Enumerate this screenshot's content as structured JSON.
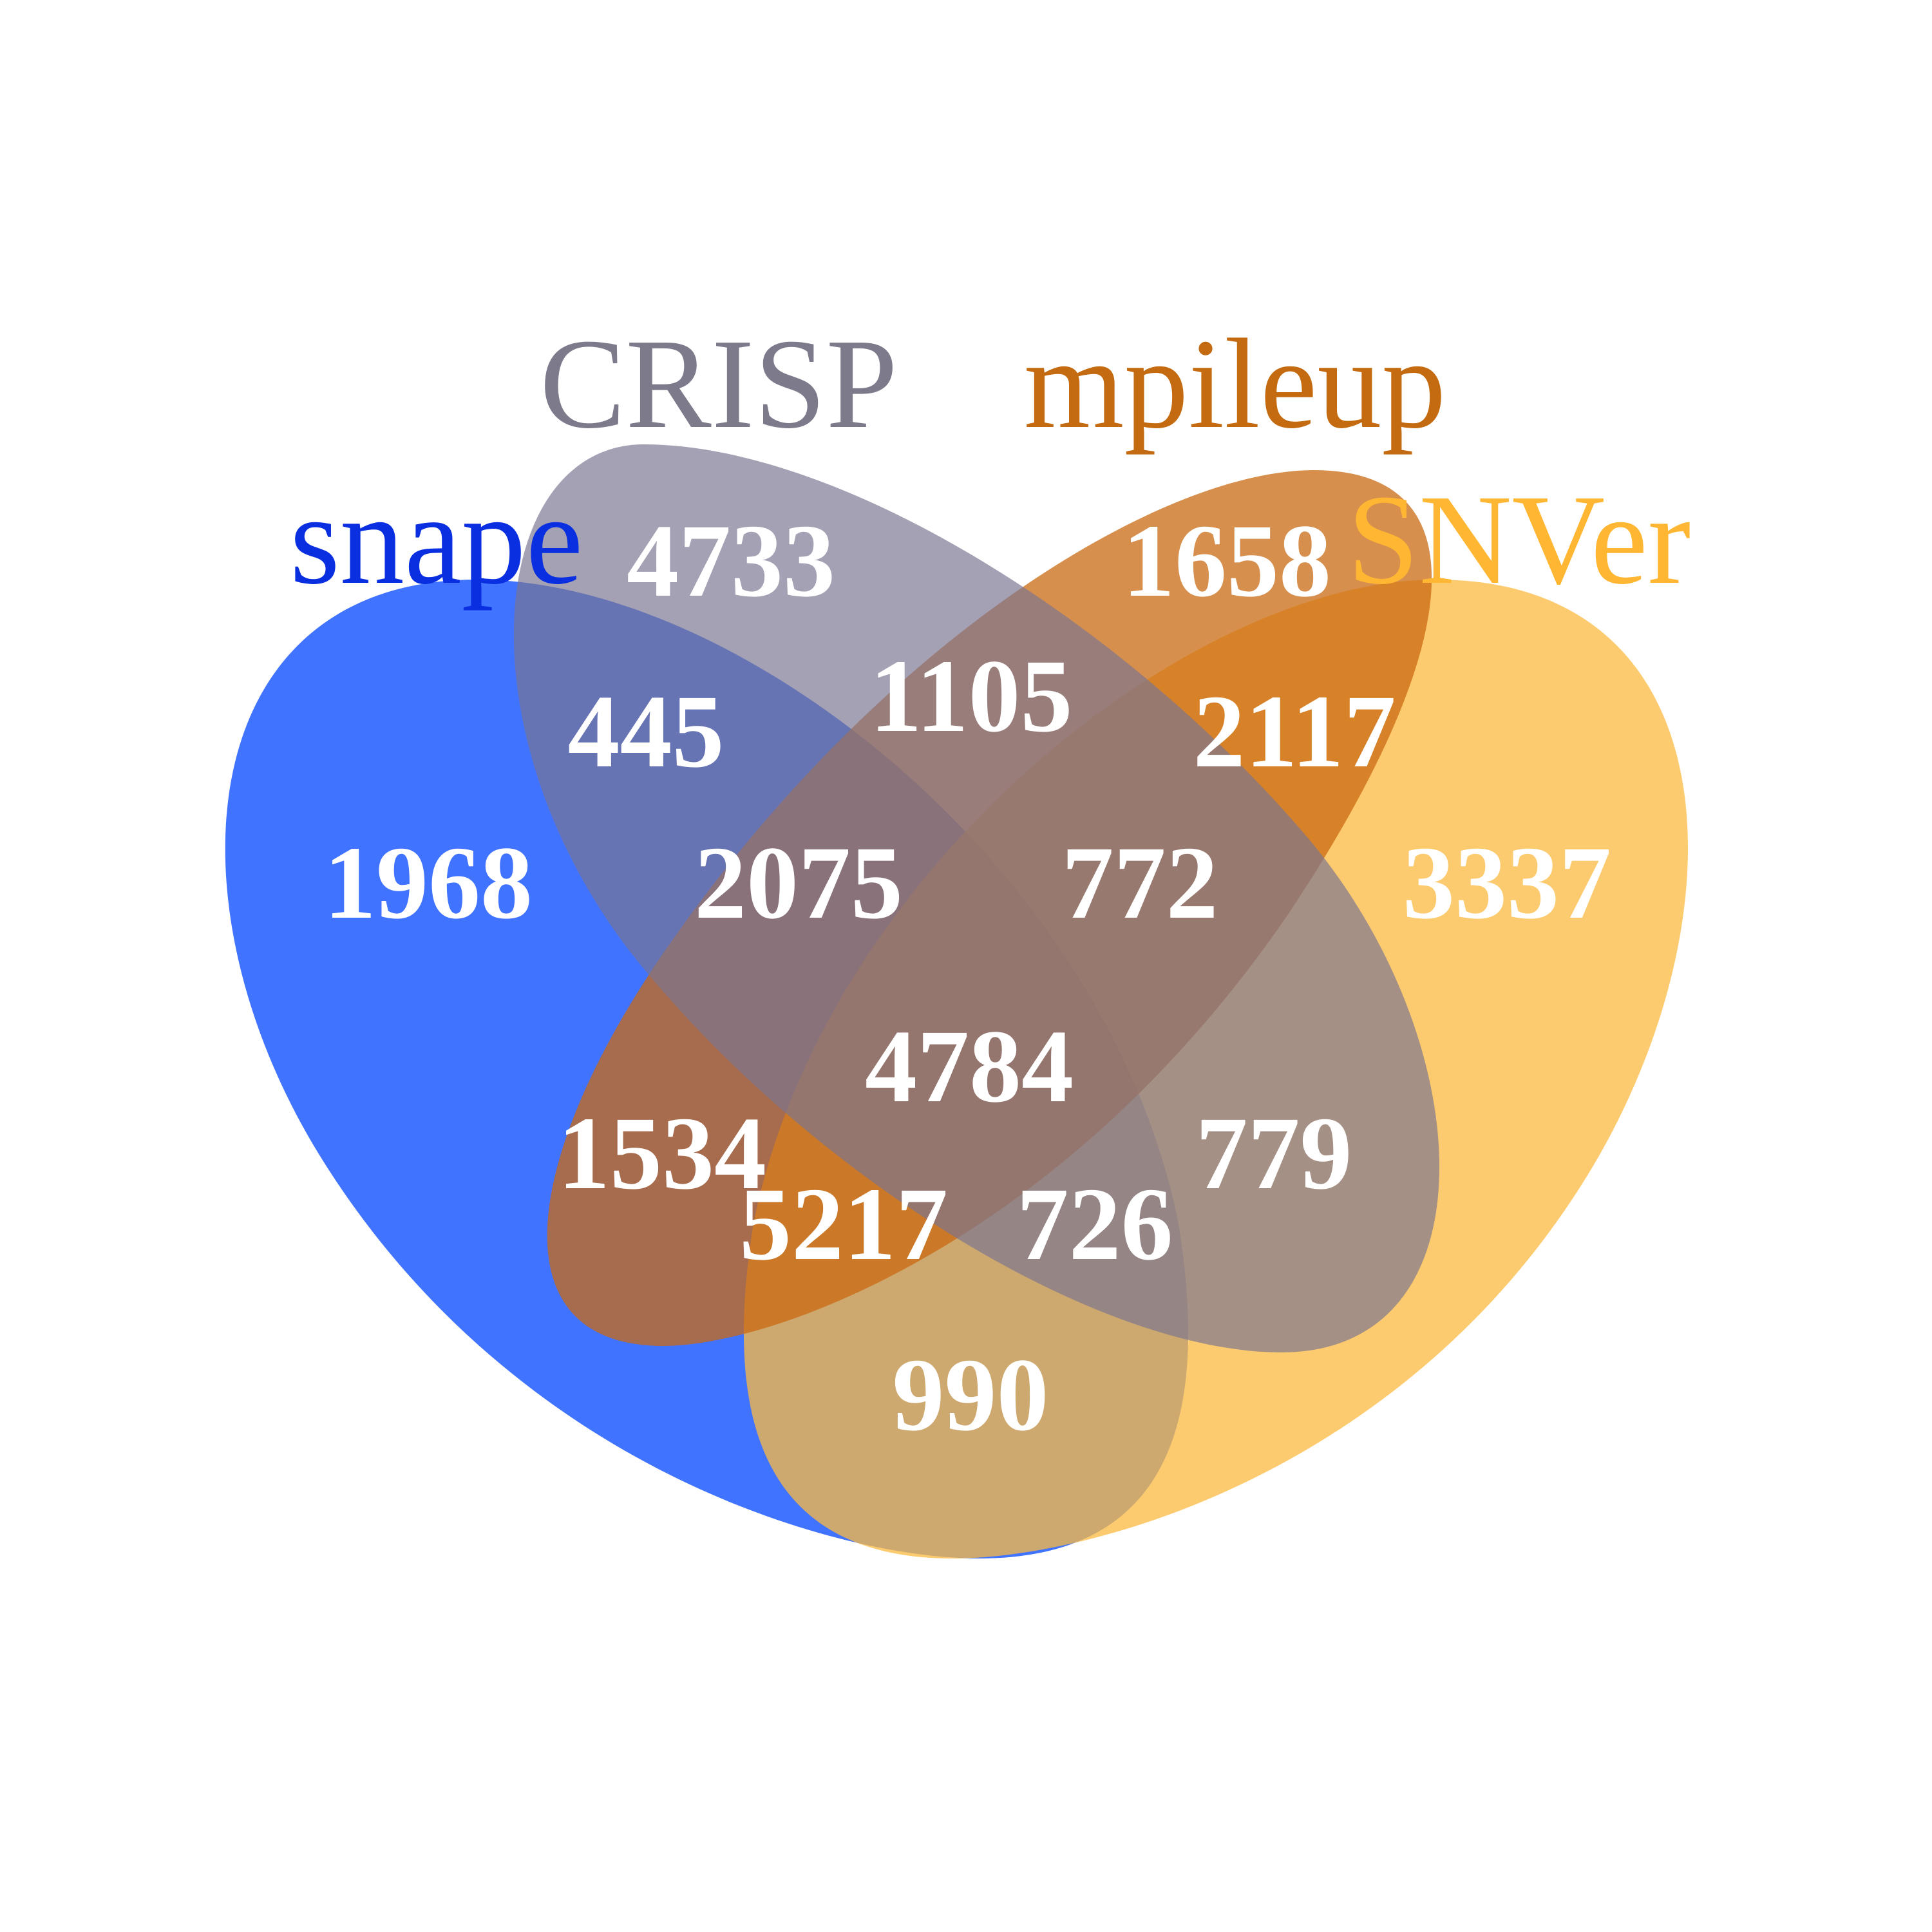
{
  "sets": [
    {
      "id": "snape",
      "label": "snape",
      "color": "#0044ff",
      "label_color": "#0a2fe0"
    },
    {
      "id": "crisp",
      "label": "CRISP",
      "color": "#7a7590",
      "label_color": "#7d7a8c"
    },
    {
      "id": "mpileup",
      "label": "mpileup",
      "color": "#c96a12",
      "label_color": "#c46a10"
    },
    {
      "id": "snver",
      "label": "SNVer",
      "color": "#fcb93f",
      "label_color": "#ffb733"
    }
  ],
  "regions": [
    {
      "sets": [
        "crisp"
      ],
      "count": "4733"
    },
    {
      "sets": [
        "mpileup"
      ],
      "count": "1658"
    },
    {
      "sets": [
        "snape",
        "crisp"
      ],
      "count": "445"
    },
    {
      "sets": [
        "crisp",
        "mpileup"
      ],
      "count": "1105"
    },
    {
      "sets": [
        "mpileup",
        "snver"
      ],
      "count": "2117"
    },
    {
      "sets": [
        "snape"
      ],
      "count": "1968"
    },
    {
      "sets": [
        "snape",
        "crisp",
        "mpileup"
      ],
      "count": "2075"
    },
    {
      "sets": [
        "crisp",
        "mpileup",
        "snver"
      ],
      "count": "772"
    },
    {
      "sets": [
        "snver"
      ],
      "count": "3337"
    },
    {
      "sets": [
        "snape",
        "crisp",
        "mpileup",
        "snver"
      ],
      "count": "4784"
    },
    {
      "sets": [
        "snape",
        "mpileup"
      ],
      "count": "1534"
    },
    {
      "sets": [
        "crisp",
        "snver"
      ],
      "count": "779"
    },
    {
      "sets": [
        "snape",
        "mpileup",
        "snver"
      ],
      "count": "5217"
    },
    {
      "sets": [
        "snape",
        "crisp",
        "snver"
      ],
      "count": "726"
    },
    {
      "sets": [
        "snape",
        "snver"
      ],
      "count": "990"
    }
  ]
}
